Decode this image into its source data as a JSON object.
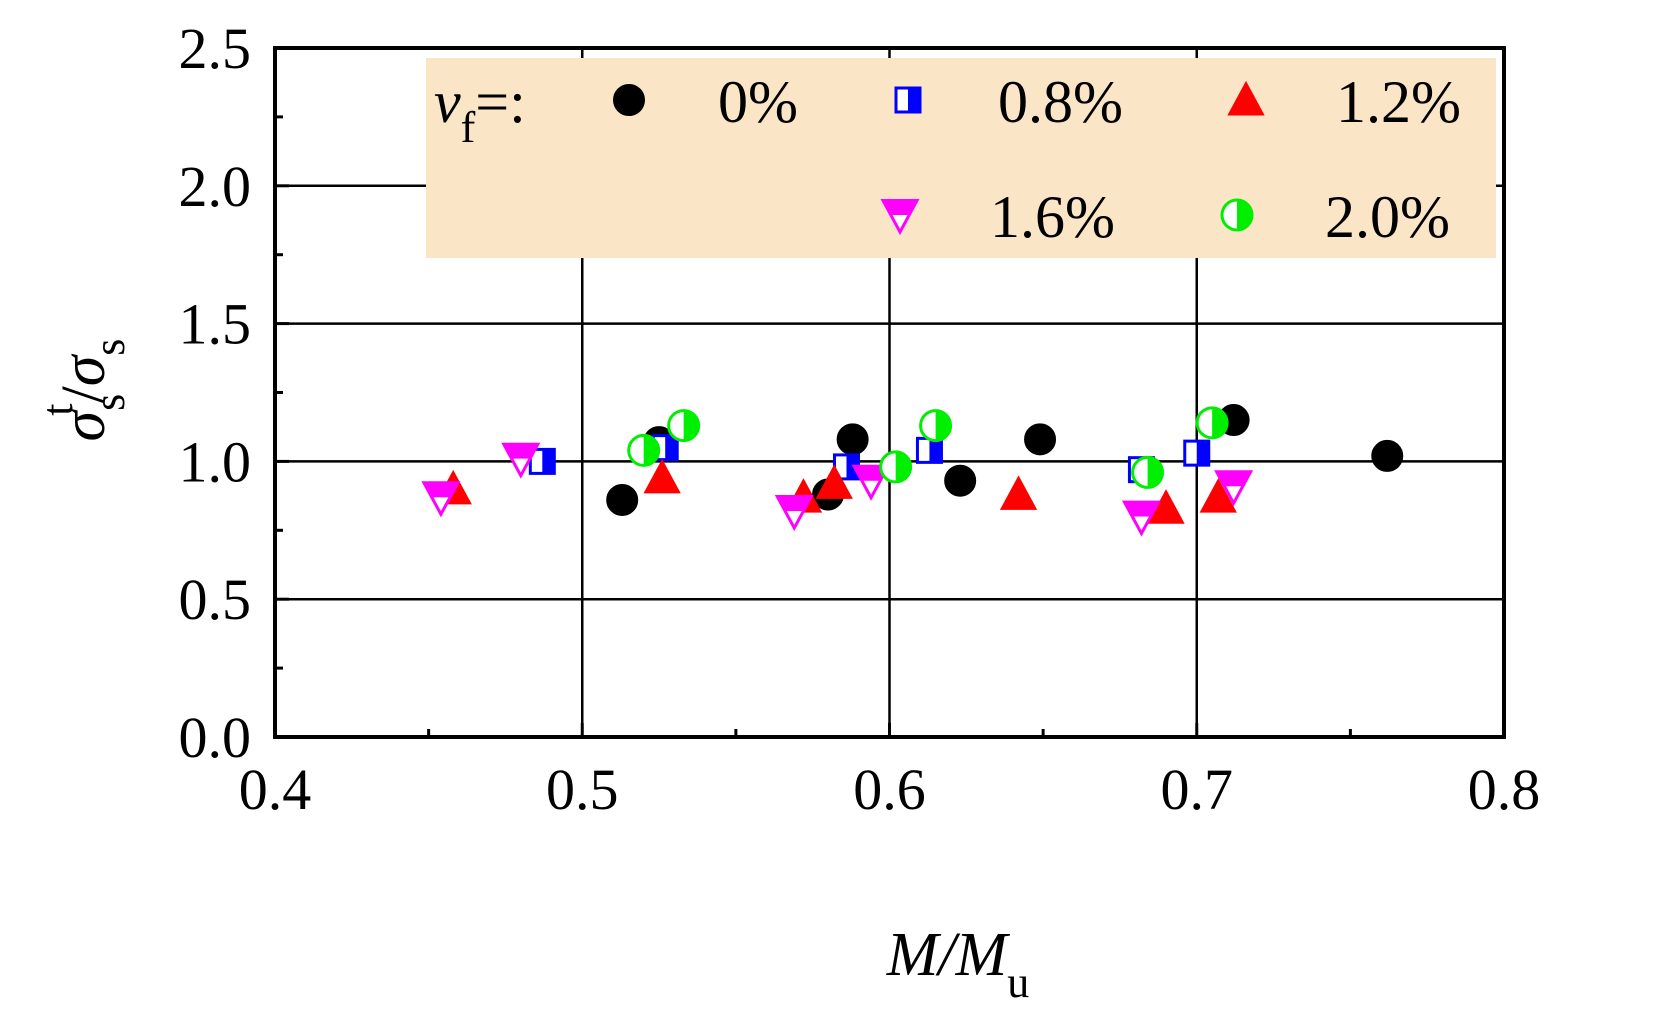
{
  "chart_data": {
    "type": "scatter",
    "title": "",
    "xlabel": {
      "main": "M/M",
      "sub": "u"
    },
    "ylabel": {
      "main": "σ",
      "sub": "s",
      "sup": "t",
      "sep": "/",
      "main2": "σ",
      "sub2": "s"
    },
    "xlim": [
      0.4,
      0.8
    ],
    "ylim": [
      0.0,
      2.5
    ],
    "x_ticks": [
      "0.4",
      "0.5",
      "0.6",
      "0.7",
      "0.8"
    ],
    "y_ticks": [
      "0.0",
      "0.5",
      "1.0",
      "1.5",
      "2.0",
      "2.5"
    ],
    "grid": true,
    "legend": {
      "title_main": "v",
      "title_sub": "f",
      "title_suffix": "=:",
      "placement": "top-right"
    },
    "series": [
      {
        "name": "0%",
        "marker": "filled-circle",
        "color": "#000000",
        "points": [
          [
            0.513,
            0.86
          ],
          [
            0.525,
            1.07
          ],
          [
            0.58,
            0.88
          ],
          [
            0.588,
            1.08
          ],
          [
            0.623,
            0.93
          ],
          [
            0.649,
            1.08
          ],
          [
            0.712,
            1.15
          ],
          [
            0.762,
            1.02
          ]
        ]
      },
      {
        "name": "0.8%",
        "marker": "half-square",
        "color": "#0000ff",
        "points": [
          [
            0.487,
            1.0
          ],
          [
            0.527,
            1.05
          ],
          [
            0.586,
            0.98
          ],
          [
            0.613,
            1.04
          ],
          [
            0.682,
            0.97
          ],
          [
            0.7,
            1.03
          ]
        ]
      },
      {
        "name": "1.2%",
        "marker": "filled-triangle-up",
        "color": "#ff0000",
        "points": [
          [
            0.458,
            0.9
          ],
          [
            0.526,
            0.94
          ],
          [
            0.572,
            0.87
          ],
          [
            0.582,
            0.92
          ],
          [
            0.642,
            0.88
          ],
          [
            0.69,
            0.83
          ],
          [
            0.707,
            0.87
          ]
        ]
      },
      {
        "name": "1.6%",
        "marker": "half-triangle-down",
        "color": "#ff00ff",
        "points": [
          [
            0.454,
            0.87
          ],
          [
            0.48,
            1.01
          ],
          [
            0.569,
            0.82
          ],
          [
            0.594,
            0.93
          ],
          [
            0.682,
            0.8
          ],
          [
            0.712,
            0.91
          ]
        ]
      },
      {
        "name": "2.0%",
        "marker": "half-circle",
        "color": "#00ee00",
        "points": [
          [
            0.52,
            1.04
          ],
          [
            0.533,
            1.13
          ],
          [
            0.602,
            0.98
          ],
          [
            0.615,
            1.13
          ],
          [
            0.684,
            0.96
          ],
          [
            0.705,
            1.14
          ]
        ]
      }
    ],
    "colors": {
      "axis": "#000000",
      "legend_bg": "#fae5c6"
    }
  }
}
